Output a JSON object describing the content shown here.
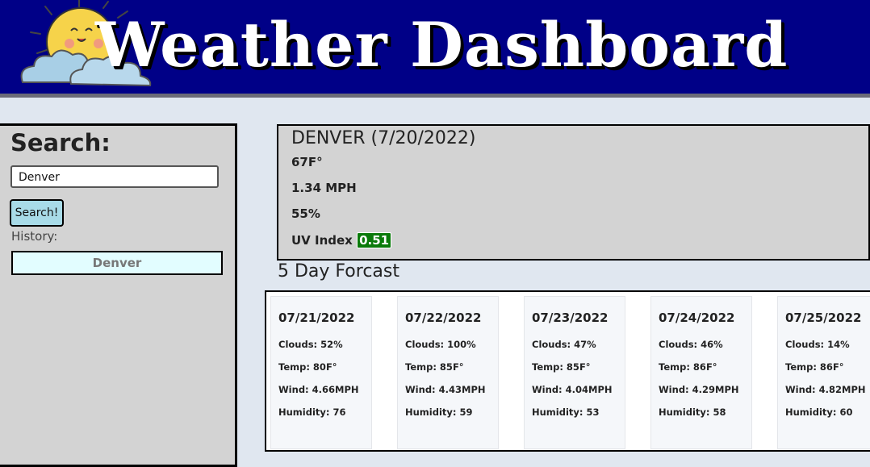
{
  "header": {
    "title": "Weather Dashboard"
  },
  "sidebar": {
    "heading": "Search:",
    "search_value": "Denver",
    "search_button_label": "Search!",
    "history_label": "History:",
    "history": [
      "Denver"
    ]
  },
  "current": {
    "title": "DENVER (7/20/2022)",
    "temp": "67F°",
    "wind": "1.34 MPH",
    "humidity": "55%",
    "uv_label": "UV Index",
    "uv_value": "0.51",
    "uv_color": "#0a7a0a"
  },
  "forecast": {
    "heading": "5 Day Forcast",
    "days": [
      {
        "date": "07/21/2022",
        "clouds": "Clouds: 52%",
        "temp": "Temp: 80F°",
        "wind": "Wind: 4.66MPH",
        "humidity": "Humidity: 76"
      },
      {
        "date": "07/22/2022",
        "clouds": "Clouds: 100%",
        "temp": "Temp: 85F°",
        "wind": "Wind: 4.43MPH",
        "humidity": "Humidity: 59"
      },
      {
        "date": "07/23/2022",
        "clouds": "Clouds: 47%",
        "temp": "Temp: 85F°",
        "wind": "Wind: 4.04MPH",
        "humidity": "Humidity: 53"
      },
      {
        "date": "07/24/2022",
        "clouds": "Clouds: 46%",
        "temp": "Temp: 86F°",
        "wind": "Wind: 4.29MPH",
        "humidity": "Humidity: 58"
      },
      {
        "date": "07/25/2022",
        "clouds": "Clouds: 14%",
        "temp": "Temp: 86F°",
        "wind": "Wind: 4.82MPH",
        "humidity": "Humidity: 60"
      }
    ]
  },
  "colors": {
    "header_bg": "#000087",
    "sidebar_bg": "#d3d3d3",
    "history_bg": "#e2fdff",
    "button_bg": "#a8dbe8"
  },
  "icons": {
    "logo": "sun-behind-cloud-icon"
  }
}
